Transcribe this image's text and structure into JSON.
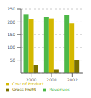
{
  "chart_data": {
    "type": "bar",
    "categories": [
      "2000",
      "2001",
      "2002"
    ],
    "series": [
      {
        "name": "Revenues",
        "color": "#4db848",
        "values": [
          230,
          220,
          228
        ]
      },
      {
        "name": "Cost of Product",
        "color": "#d4b800",
        "values": [
          210,
          213,
          195
        ]
      },
      {
        "name": "Gross Profit",
        "color": "#7a7000",
        "values": [
          30,
          15,
          50
        ]
      }
    ],
    "ylim": [
      0,
      250
    ],
    "yticks": [
      50,
      100,
      150,
      200,
      250
    ],
    "grid": true,
    "legend": "bottom"
  }
}
